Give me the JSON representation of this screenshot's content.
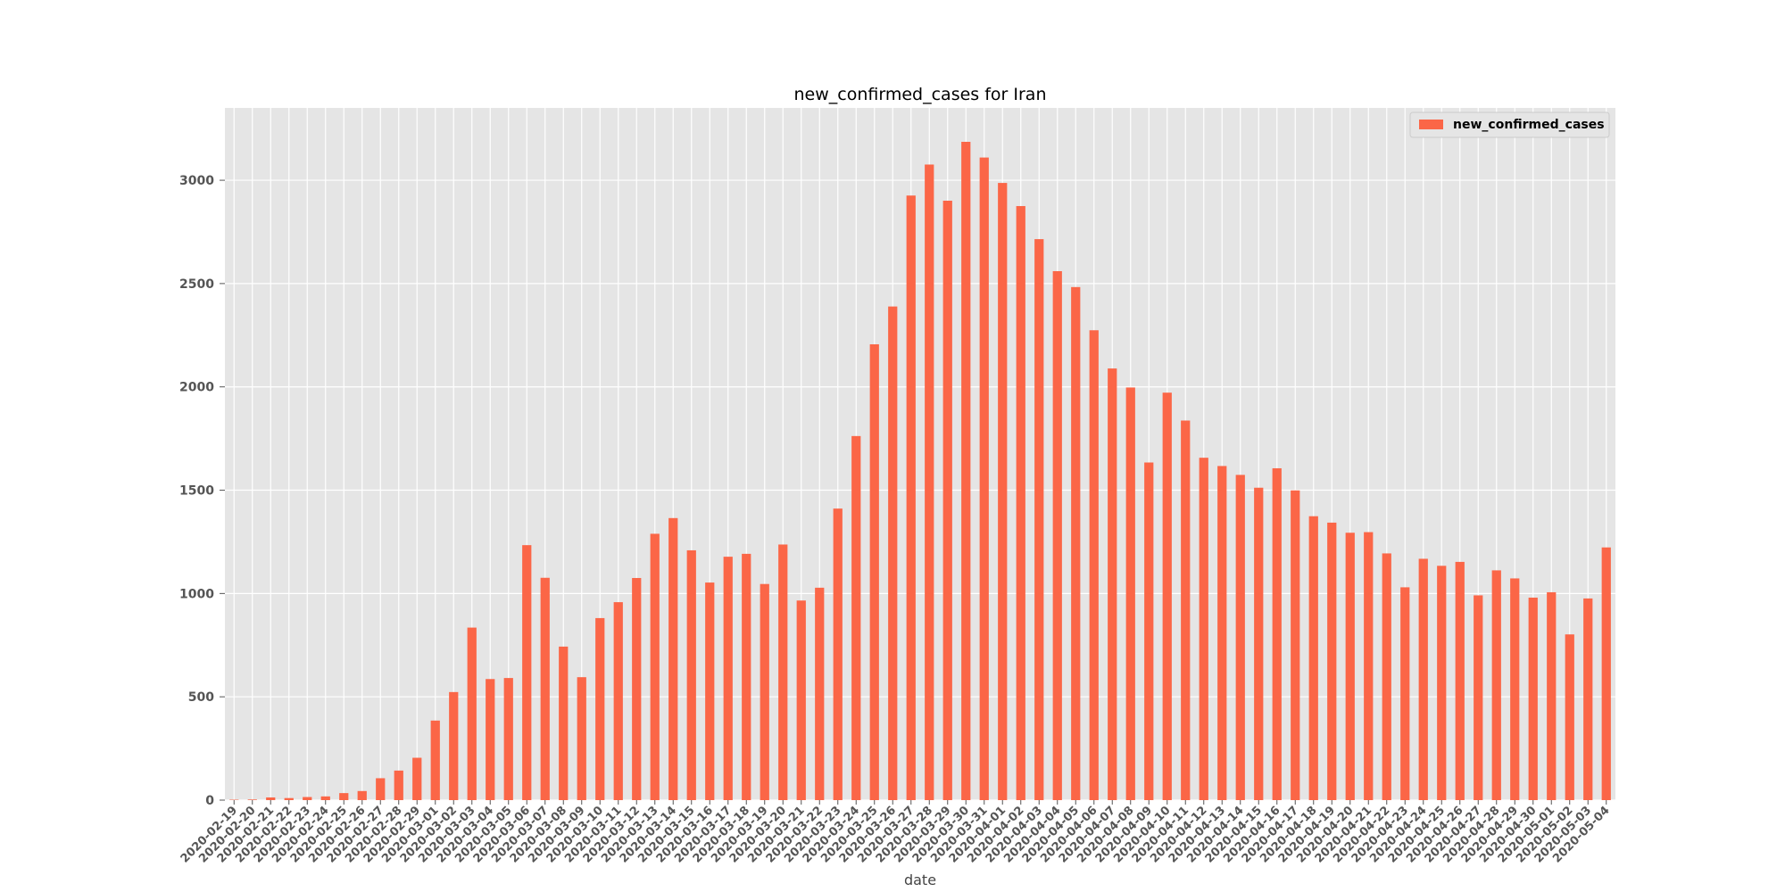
{
  "chart_data": {
    "type": "bar",
    "title": "new_confirmed_cases for Iran",
    "xlabel": "date",
    "ylabel": "",
    "ylim": [
      0,
      3350
    ],
    "yticks": [
      0,
      500,
      1000,
      1500,
      2000,
      2500,
      3000
    ],
    "grid": true,
    "legend_position": "top-right",
    "colors": {
      "bar": "#fb6647",
      "background": "#e5e5e5",
      "grid": "#ffffff"
    },
    "categories": [
      "2020-02-19",
      "2020-02-20",
      "2020-02-21",
      "2020-02-22",
      "2020-02-23",
      "2020-02-24",
      "2020-02-25",
      "2020-02-26",
      "2020-02-27",
      "2020-02-28",
      "2020-02-29",
      "2020-03-01",
      "2020-03-02",
      "2020-03-03",
      "2020-03-04",
      "2020-03-05",
      "2020-03-06",
      "2020-03-07",
      "2020-03-08",
      "2020-03-09",
      "2020-03-10",
      "2020-03-11",
      "2020-03-12",
      "2020-03-13",
      "2020-03-14",
      "2020-03-15",
      "2020-03-16",
      "2020-03-17",
      "2020-03-18",
      "2020-03-19",
      "2020-03-20",
      "2020-03-21",
      "2020-03-22",
      "2020-03-23",
      "2020-03-24",
      "2020-03-25",
      "2020-03-26",
      "2020-03-27",
      "2020-03-28",
      "2020-03-29",
      "2020-03-30",
      "2020-03-31",
      "2020-04-01",
      "2020-04-02",
      "2020-04-03",
      "2020-04-04",
      "2020-04-05",
      "2020-04-06",
      "2020-04-07",
      "2020-04-08",
      "2020-04-09",
      "2020-04-10",
      "2020-04-11",
      "2020-04-12",
      "2020-04-13",
      "2020-04-14",
      "2020-04-15",
      "2020-04-16",
      "2020-04-17",
      "2020-04-18",
      "2020-04-19",
      "2020-04-20",
      "2020-04-21",
      "2020-04-22",
      "2020-04-23",
      "2020-04-24",
      "2020-04-25",
      "2020-04-26",
      "2020-04-27",
      "2020-04-28",
      "2020-04-29",
      "2020-04-30",
      "2020-05-01",
      "2020-05-02",
      "2020-05-03",
      "2020-05-04"
    ],
    "series": [
      {
        "name": "new_confirmed_cases",
        "values": [
          2,
          3,
          13,
          10,
          15,
          18,
          34,
          44,
          106,
          143,
          205,
          385,
          523,
          835,
          586,
          591,
          1234,
          1076,
          743,
          595,
          881,
          958,
          1075,
          1289,
          1365,
          1209,
          1053,
          1178,
          1192,
          1046,
          1237,
          966,
          1028,
          1411,
          1762,
          2206,
          2389,
          2926,
          3076,
          2901,
          3186,
          3110,
          2987,
          2875,
          2715,
          2560,
          2483,
          2274,
          2089,
          1997,
          1634,
          1972,
          1837,
          1657,
          1617,
          1574,
          1512,
          1606,
          1499,
          1374,
          1343,
          1294,
          1297,
          1194,
          1030,
          1168,
          1134,
          1153,
          991,
          1112,
          1073,
          980,
          1006,
          802,
          976,
          1223
        ]
      }
    ]
  }
}
